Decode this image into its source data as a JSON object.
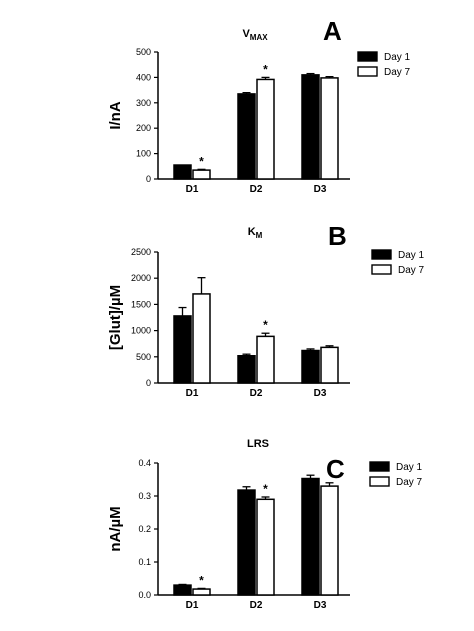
{
  "chart_data": [
    {
      "type": "bar",
      "panel": "A",
      "title_main": "V",
      "title_sub": "MAX",
      "ylabel": "I/nA",
      "categories": [
        "D1",
        "D2",
        "D3"
      ],
      "ylim": [
        0,
        500
      ],
      "yticks": [
        "0",
        "100",
        "200",
        "300",
        "400",
        "500"
      ],
      "series": [
        {
          "name": "Day 1",
          "fill": "#000000",
          "values": [
            55,
            335,
            410
          ],
          "errors": [
            0,
            5,
            5
          ]
        },
        {
          "name": "Day 7",
          "fill": "#ffffff",
          "values": [
            35,
            392,
            398
          ],
          "errors": [
            3,
            8,
            5
          ]
        }
      ],
      "significance": [
        {
          "category": "D1",
          "series": "Day 7",
          "label": "*"
        },
        {
          "category": "D2",
          "series": "Day 7",
          "label": "*"
        }
      ],
      "legend_position": "top-right"
    },
    {
      "type": "bar",
      "panel": "B",
      "title_main": "K",
      "title_sub": "M",
      "ylabel": "[Glut]/µM",
      "categories": [
        "D1",
        "D2",
        "D3"
      ],
      "ylim": [
        0,
        2500
      ],
      "yticks": [
        "0",
        "500",
        "1000",
        "1500",
        "2000",
        "2500"
      ],
      "series": [
        {
          "name": "Day 1",
          "fill": "#000000",
          "values": [
            1280,
            520,
            620
          ],
          "errors": [
            160,
            30,
            30
          ]
        },
        {
          "name": "Day 7",
          "fill": "#ffffff",
          "values": [
            1700,
            890,
            680
          ],
          "errors": [
            310,
            60,
            30
          ]
        }
      ],
      "significance": [
        {
          "category": "D2",
          "series": "Day 7",
          "label": "*"
        }
      ],
      "legend_position": "top-right"
    },
    {
      "type": "bar",
      "panel": "C",
      "title_main": "LRS",
      "title_sub": "",
      "ylabel": "nA/µM",
      "categories": [
        "D1",
        "D2",
        "D3"
      ],
      "ylim": [
        0,
        0.4
      ],
      "yticks": [
        "0.0",
        "0.1",
        "0.2",
        "0.3",
        "0.4"
      ],
      "series": [
        {
          "name": "Day 1",
          "fill": "#000000",
          "values": [
            0.03,
            0.318,
            0.353
          ],
          "errors": [
            0.002,
            0.01,
            0.01
          ]
        },
        {
          "name": "Day 7",
          "fill": "#ffffff",
          "values": [
            0.018,
            0.29,
            0.33
          ],
          "errors": [
            0.002,
            0.007,
            0.01
          ]
        }
      ],
      "significance": [
        {
          "category": "D1",
          "series": "Day 7",
          "label": "*"
        },
        {
          "category": "D2",
          "series": "Day 7",
          "label": "*"
        }
      ],
      "legend_position": "top-right"
    }
  ]
}
